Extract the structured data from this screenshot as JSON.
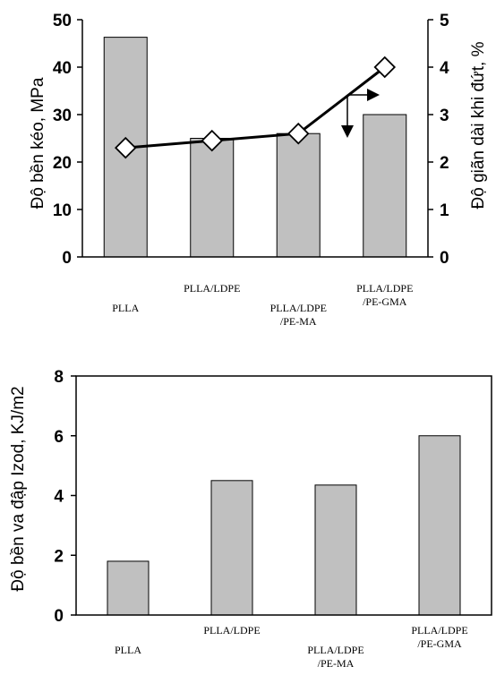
{
  "chart_data": [
    {
      "type": "bar+line",
      "categories": [
        [
          "PLLA"
        ],
        [
          "PLLA/LDPE"
        ],
        [
          "PLLA/LDPE",
          "/PE-MA"
        ],
        [
          "PLLA/LDPE",
          "/PE-GMA"
        ]
      ],
      "bar_series": {
        "values": [
          46.3,
          25.0,
          26.0,
          30.0
        ]
      },
      "line_series": {
        "values": [
          2.3,
          2.45,
          2.6,
          4.0
        ]
      },
      "ylabel": "Độ bền kéo, MPa",
      "ylabel_right": "Độ giãn dài khi đứt, %",
      "ylim": [
        0,
        50
      ],
      "yticks": [
        "0",
        "10",
        "20",
        "30",
        "40",
        "50"
      ],
      "ylim_right": [
        0,
        5
      ],
      "yticks_right": [
        "0",
        "1",
        "2",
        "3",
        "4",
        "5"
      ],
      "grid": false
    },
    {
      "type": "bar",
      "categories": [
        [
          "PLLA"
        ],
        [
          "PLLA/LDPE"
        ],
        [
          "PLLA/LDPE",
          "/PE-MA"
        ],
        [
          "PLLA/LDPE",
          "/PE-GMA"
        ]
      ],
      "values": [
        1.8,
        4.5,
        4.35,
        6.0
      ],
      "ylabel": "Độ bền va đập Izod, KJ/m2",
      "ylim": [
        0,
        8
      ],
      "yticks": [
        "0",
        "2",
        "4",
        "6",
        "8"
      ],
      "grid": false
    }
  ]
}
